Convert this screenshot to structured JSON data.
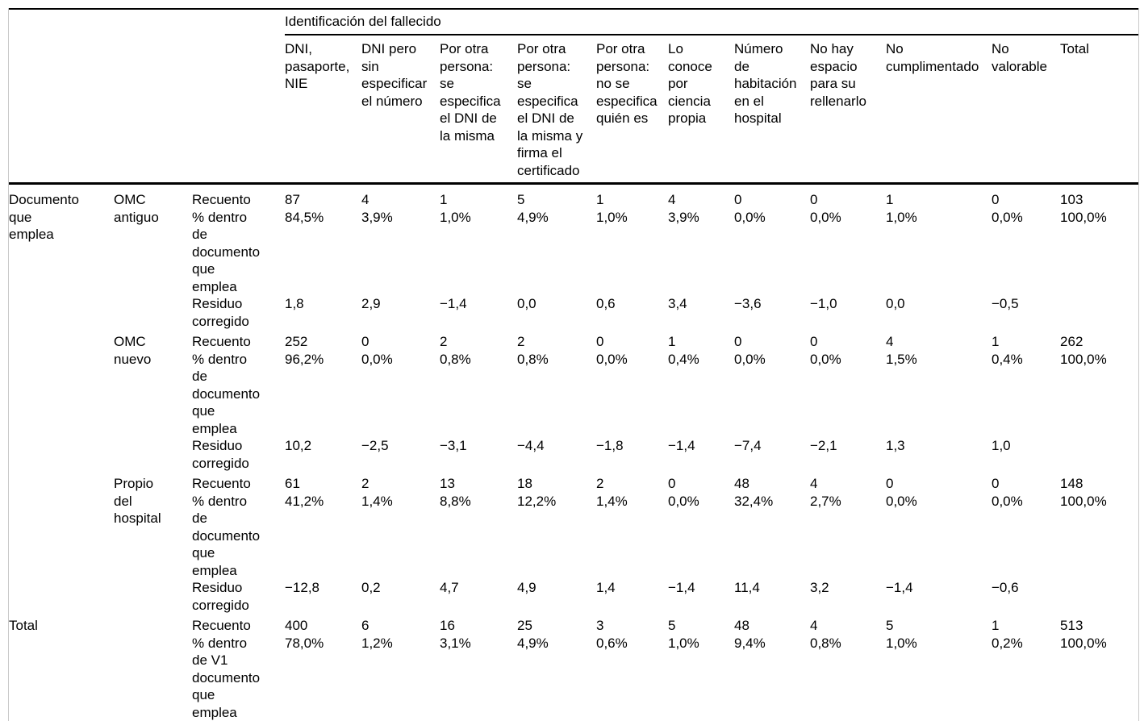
{
  "table": {
    "spanner_title": "Identificación del fallecido",
    "row_group_label": "Documento\nque\nemplea",
    "columns": [
      "DNI,\npasaporte,\nNIE",
      "DNI pero\nsin\nespecificar\nel número",
      "Por otra\npersona:\nse\nespecifica\nel DNI de\nla misma",
      "Por otra\npersona:\nse\nespecifica\nel DNI de\nla misma y\nfirma el\ncertificado",
      "Por otra\npersona:\nno se\nespecifica\nquién es",
      "Lo\nconoce\npor\nciencia\npropia",
      "Número\nde\nhabitación\nen el\nhospital",
      "No hay\nespacio\npara su\nrellenarlo",
      "No\ncumplimentado",
      "No\nvalorable",
      "Total"
    ],
    "groups": [
      {
        "category": "OMC\nantiguo",
        "rows": [
          {
            "stat": "Recuento",
            "values": [
              "87",
              "4",
              "1",
              "5",
              "1",
              "4",
              "0",
              "0",
              "1",
              "0",
              "103"
            ]
          },
          {
            "stat": "% dentro\nde\ndocumento\nque\nemplea",
            "values": [
              "84,5%",
              "3,9%",
              "1,0%",
              "4,9%",
              "1,0%",
              "3,9%",
              "0,0%",
              "0,0%",
              "1,0%",
              "0,0%",
              "100,0%"
            ]
          },
          {
            "stat": "Residuo\ncorregido",
            "values": [
              "1,8",
              "2,9",
              "−1,4",
              "0,0",
              "0,6",
              "3,4",
              "−3,6",
              "−1,0",
              "0,0",
              "−0,5",
              ""
            ]
          }
        ]
      },
      {
        "category": "OMC\nnuevo",
        "rows": [
          {
            "stat": "Recuento",
            "values": [
              "252",
              "0",
              "2",
              "2",
              "0",
              "1",
              "0",
              "0",
              "4",
              "1",
              "262"
            ]
          },
          {
            "stat": "% dentro\nde\ndocumento\nque\nemplea",
            "values": [
              "96,2%",
              "0,0%",
              "0,8%",
              "0,8%",
              "0,0%",
              "0,4%",
              "0,0%",
              "0,0%",
              "1,5%",
              "0,4%",
              "100,0%"
            ]
          },
          {
            "stat": "Residuo\ncorregido",
            "values": [
              "10,2",
              "−2,5",
              "−3,1",
              "−4,4",
              "−1,8",
              "−1,4",
              "−7,4",
              "−2,1",
              "1,3",
              "1,0",
              ""
            ]
          }
        ]
      },
      {
        "category": "Propio\ndel\nhospital",
        "rows": [
          {
            "stat": "Recuento",
            "values": [
              "61",
              "2",
              "13",
              "18",
              "2",
              "0",
              "48",
              "4",
              "0",
              "0",
              "148"
            ]
          },
          {
            "stat": "% dentro\nde\ndocumento\nque\nemplea",
            "values": [
              "41,2%",
              "1,4%",
              "8,8%",
              "12,2%",
              "1,4%",
              "0,0%",
              "32,4%",
              "2,7%",
              "0,0%",
              "0,0%",
              "100,0%"
            ]
          },
          {
            "stat": "Residuo\ncorregido",
            "values": [
              "−12,8",
              "0,2",
              "4,7",
              "4,9",
              "1,4",
              "−1,4",
              "11,4",
              "3,2",
              "−1,4",
              "−0,6",
              ""
            ]
          }
        ]
      }
    ],
    "total": {
      "label": "Total",
      "rows": [
        {
          "stat": "Recuento",
          "values": [
            "400",
            "6",
            "16",
            "25",
            "3",
            "5",
            "48",
            "4",
            "5",
            "1",
            "513"
          ]
        },
        {
          "stat": "% dentro\nde V1\ndocumento\nque\nemplea",
          "values": [
            "78,0%",
            "1,2%",
            "3,1%",
            "4,9%",
            "0,6%",
            "1,0%",
            "9,4%",
            "0,8%",
            "1,0%",
            "0,2%",
            "100,0%"
          ]
        }
      ]
    }
  }
}
